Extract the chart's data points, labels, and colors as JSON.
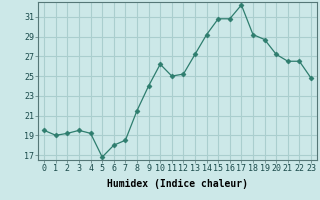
{
  "x": [
    0,
    1,
    2,
    3,
    4,
    5,
    6,
    7,
    8,
    9,
    10,
    11,
    12,
    13,
    14,
    15,
    16,
    17,
    18,
    19,
    20,
    21,
    22,
    23
  ],
  "y": [
    19.5,
    19.0,
    19.2,
    19.5,
    19.2,
    16.8,
    18.0,
    18.5,
    21.5,
    24.0,
    26.2,
    25.0,
    25.2,
    27.2,
    29.2,
    30.8,
    30.8,
    32.2,
    29.2,
    28.7,
    27.2,
    26.5,
    26.5,
    24.8
  ],
  "line_color": "#2e7d6e",
  "marker": "D",
  "marker_size": 2.5,
  "bg_color": "#cce8e8",
  "grid_color": "#aacece",
  "xlabel": "Humidex (Indice chaleur)",
  "ylim": [
    16.5,
    32.5
  ],
  "xlim": [
    -0.5,
    23.5
  ],
  "yticks": [
    17,
    19,
    21,
    23,
    25,
    27,
    29,
    31
  ],
  "xticks": [
    0,
    1,
    2,
    3,
    4,
    5,
    6,
    7,
    8,
    9,
    10,
    11,
    12,
    13,
    14,
    15,
    16,
    17,
    18,
    19,
    20,
    21,
    22,
    23
  ],
  "xtick_labels": [
    "0",
    "1",
    "2",
    "3",
    "4",
    "5",
    "6",
    "7",
    "8",
    "9",
    "10",
    "11",
    "12",
    "13",
    "14",
    "15",
    "16",
    "17",
    "18",
    "19",
    "20",
    "21",
    "22",
    "23"
  ],
  "label_fontsize": 7,
  "tick_fontsize": 6
}
